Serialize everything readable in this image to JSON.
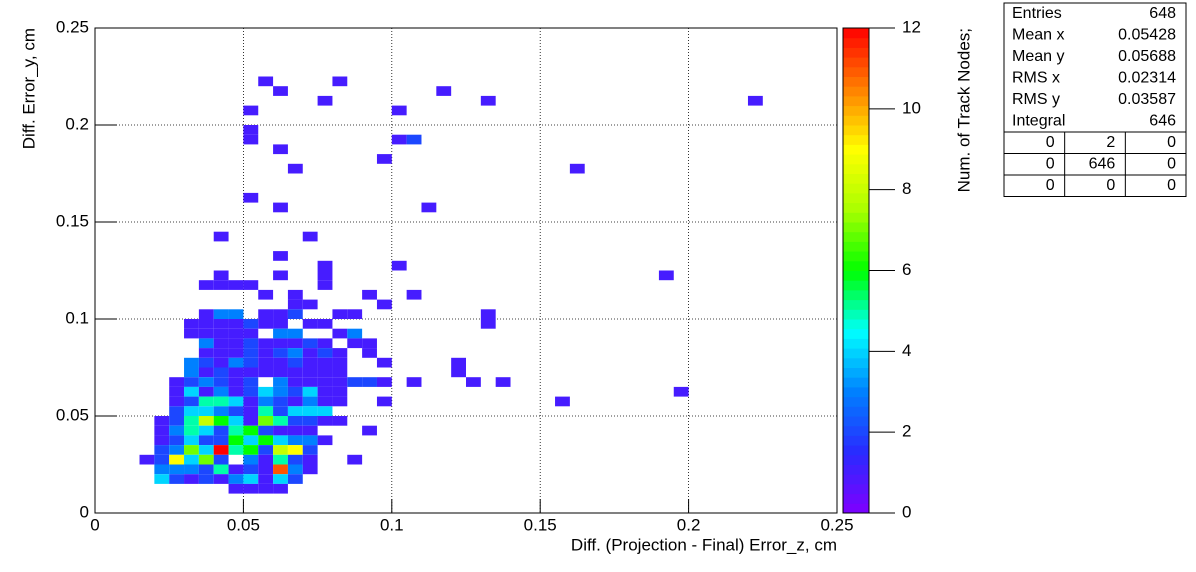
{
  "chart_data": {
    "type": "heatmap",
    "xlabel": "Diff. (Projection - Final) Error_z, cm",
    "ylabel": "Diff. Error_y, cm",
    "zlabel": "Num. of Track Nodes;",
    "xlim": [
      0,
      0.25
    ],
    "ylim": [
      0,
      0.25
    ],
    "zlim": [
      0,
      12
    ],
    "xticks": [
      0,
      0.05,
      0.1,
      0.15,
      0.2,
      0.25
    ],
    "yticks": [
      0,
      0.05,
      0.1,
      0.15,
      0.2,
      0.25
    ],
    "zticks": [
      0,
      2,
      4,
      6,
      8,
      10,
      12
    ],
    "grid": true,
    "palette": [
      "#7f00ff",
      "#2a2aff",
      "#0080ff",
      "#00ffff",
      "#00ff00",
      "#aaff00",
      "#ffff00",
      "#ff8000",
      "#ff0000"
    ],
    "x": [
      0.055,
      0.08,
      0.06,
      0.115,
      0.075,
      0.13,
      0.22,
      0.05,
      0.1,
      0.05,
      0.05,
      0.1,
      0.105,
      0.06,
      0.095,
      0.065,
      0.16,
      0.05,
      0.06,
      0.11,
      0.04,
      0.07,
      0.06,
      0.075,
      0.1,
      0.04,
      0.06,
      0.075,
      0.19,
      0.035,
      0.04,
      0.045,
      0.05,
      0.075,
      0.055,
      0.065,
      0.09,
      0.105,
      0.065,
      0.07,
      0.095,
      0.035,
      0.04,
      0.045,
      0.055,
      0.06,
      0.065,
      0.08,
      0.085,
      0.13,
      0.03,
      0.035,
      0.04,
      0.045,
      0.05,
      0.055,
      0.06,
      0.07,
      0.075,
      0.13,
      0.03,
      0.035,
      0.04,
      0.045,
      0.05,
      0.06,
      0.065,
      0.08,
      0.085,
      0.035,
      0.04,
      0.045,
      0.05,
      0.055,
      0.06,
      0.065,
      0.07,
      0.075,
      0.085,
      0.09,
      0.035,
      0.04,
      0.045,
      0.05,
      0.055,
      0.06,
      0.065,
      0.07,
      0.075,
      0.08,
      0.09,
      0.03,
      0.035,
      0.04,
      0.045,
      0.05,
      0.055,
      0.06,
      0.065,
      0.07,
      0.075,
      0.08,
      0.095,
      0.12,
      0.03,
      0.035,
      0.04,
      0.045,
      0.05,
      0.055,
      0.06,
      0.065,
      0.07,
      0.075,
      0.08,
      0.12,
      0.025,
      0.03,
      0.035,
      0.04,
      0.045,
      0.05,
      0.06,
      0.065,
      0.07,
      0.075,
      0.08,
      0.085,
      0.09,
      0.095,
      0.105,
      0.125,
      0.135,
      0.025,
      0.03,
      0.035,
      0.04,
      0.045,
      0.05,
      0.055,
      0.06,
      0.065,
      0.07,
      0.075,
      0.08,
      0.195,
      0.025,
      0.03,
      0.035,
      0.04,
      0.045,
      0.05,
      0.055,
      0.06,
      0.065,
      0.07,
      0.075,
      0.08,
      0.095,
      0.155,
      0.025,
      0.03,
      0.035,
      0.04,
      0.045,
      0.05,
      0.055,
      0.06,
      0.065,
      0.07,
      0.075,
      0.02,
      0.025,
      0.03,
      0.035,
      0.04,
      0.045,
      0.05,
      0.055,
      0.06,
      0.065,
      0.07,
      0.075,
      0.08,
      0.02,
      0.025,
      0.03,
      0.035,
      0.04,
      0.045,
      0.05,
      0.055,
      0.06,
      0.065,
      0.07,
      0.09,
      0.02,
      0.025,
      0.03,
      0.035,
      0.04,
      0.045,
      0.05,
      0.055,
      0.06,
      0.065,
      0.07,
      0.075,
      0.02,
      0.025,
      0.03,
      0.035,
      0.04,
      0.045,
      0.05,
      0.055,
      0.06,
      0.065,
      0.07,
      0.015,
      0.02,
      0.025,
      0.03,
      0.035,
      0.04,
      0.05,
      0.055,
      0.06,
      0.065,
      0.07,
      0.085,
      0.02,
      0.025,
      0.03,
      0.035,
      0.04,
      0.045,
      0.05,
      0.055,
      0.06,
      0.065,
      0.07,
      0.02,
      0.025,
      0.03,
      0.035,
      0.04,
      0.045,
      0.05,
      0.055,
      0.06,
      0.065,
      0.045,
      0.05,
      0.055,
      0.06
    ],
    "y": [
      0.22,
      0.22,
      0.215,
      0.215,
      0.21,
      0.21,
      0.21,
      0.205,
      0.205,
      0.195,
      0.19,
      0.19,
      0.19,
      0.185,
      0.18,
      0.175,
      0.175,
      0.16,
      0.155,
      0.155,
      0.14,
      0.14,
      0.13,
      0.125,
      0.125,
      0.12,
      0.12,
      0.12,
      0.12,
      0.115,
      0.115,
      0.115,
      0.115,
      0.115,
      0.11,
      0.11,
      0.11,
      0.11,
      0.105,
      0.105,
      0.105,
      0.1,
      0.1,
      0.1,
      0.1,
      0.1,
      0.1,
      0.1,
      0.1,
      0.1,
      0.095,
      0.095,
      0.095,
      0.095,
      0.095,
      0.095,
      0.095,
      0.095,
      0.095,
      0.095,
      0.09,
      0.09,
      0.09,
      0.09,
      0.09,
      0.09,
      0.09,
      0.09,
      0.09,
      0.085,
      0.085,
      0.085,
      0.085,
      0.085,
      0.085,
      0.085,
      0.085,
      0.085,
      0.085,
      0.085,
      0.08,
      0.08,
      0.08,
      0.08,
      0.08,
      0.08,
      0.08,
      0.08,
      0.08,
      0.08,
      0.08,
      0.075,
      0.075,
      0.075,
      0.075,
      0.075,
      0.075,
      0.075,
      0.075,
      0.075,
      0.075,
      0.075,
      0.075,
      0.075,
      0.07,
      0.07,
      0.07,
      0.07,
      0.07,
      0.07,
      0.07,
      0.07,
      0.07,
      0.07,
      0.07,
      0.07,
      0.065,
      0.065,
      0.065,
      0.065,
      0.065,
      0.065,
      0.065,
      0.065,
      0.065,
      0.065,
      0.065,
      0.065,
      0.065,
      0.065,
      0.065,
      0.065,
      0.065,
      0.06,
      0.06,
      0.06,
      0.06,
      0.06,
      0.06,
      0.06,
      0.06,
      0.06,
      0.06,
      0.06,
      0.06,
      0.06,
      0.055,
      0.055,
      0.055,
      0.055,
      0.055,
      0.055,
      0.055,
      0.055,
      0.055,
      0.055,
      0.055,
      0.055,
      0.055,
      0.055,
      0.05,
      0.05,
      0.05,
      0.05,
      0.05,
      0.05,
      0.05,
      0.05,
      0.05,
      0.05,
      0.05,
      0.045,
      0.045,
      0.045,
      0.045,
      0.045,
      0.045,
      0.045,
      0.045,
      0.045,
      0.045,
      0.045,
      0.045,
      0.045,
      0.04,
      0.04,
      0.04,
      0.04,
      0.04,
      0.04,
      0.04,
      0.04,
      0.04,
      0.04,
      0.04,
      0.04,
      0.035,
      0.035,
      0.035,
      0.035,
      0.035,
      0.035,
      0.035,
      0.035,
      0.035,
      0.035,
      0.035,
      0.035,
      0.03,
      0.03,
      0.03,
      0.03,
      0.03,
      0.03,
      0.03,
      0.03,
      0.03,
      0.03,
      0.03,
      0.025,
      0.025,
      0.025,
      0.025,
      0.025,
      0.025,
      0.025,
      0.025,
      0.025,
      0.025,
      0.025,
      0.025,
      0.02,
      0.02,
      0.02,
      0.02,
      0.02,
      0.02,
      0.02,
      0.02,
      0.02,
      0.02,
      0.02,
      0.015,
      0.015,
      0.015,
      0.015,
      0.015,
      0.015,
      0.015,
      0.015,
      0.015,
      0.015,
      0.01,
      0.01,
      0.01,
      0.01
    ],
    "values": [
      1,
      1,
      1,
      1,
      1,
      1,
      1,
      1,
      1,
      1,
      1,
      1,
      2,
      1,
      1,
      1,
      1,
      1,
      1,
      1,
      1,
      1,
      1,
      1,
      1,
      1,
      1,
      1,
      1,
      1,
      1,
      1,
      1,
      1,
      1,
      1,
      1,
      1,
      1,
      1,
      1,
      1,
      3,
      3,
      1,
      1,
      2,
      1,
      1,
      1,
      1,
      1,
      1,
      1,
      2,
      1,
      1,
      1,
      1,
      1,
      1,
      1,
      1,
      1,
      1,
      3,
      3,
      1,
      3,
      3,
      1,
      1,
      2,
      1,
      1,
      1,
      2,
      1,
      1,
      1,
      1,
      1,
      1,
      2,
      1,
      2,
      3,
      1,
      2,
      1,
      1,
      3,
      2,
      1,
      3,
      2,
      1,
      1,
      2,
      1,
      1,
      1,
      1,
      1,
      3,
      1,
      2,
      1,
      1,
      1,
      1,
      1,
      1,
      1,
      1,
      1,
      1,
      2,
      3,
      2,
      1,
      2,
      3,
      1,
      1,
      1,
      1,
      2,
      2,
      1,
      1,
      1,
      1,
      1,
      4,
      1,
      3,
      1,
      2,
      4,
      3,
      2,
      4,
      1,
      1,
      1,
      1,
      2,
      5,
      5,
      4,
      1,
      3,
      2,
      1,
      3,
      1,
      1,
      1,
      1,
      2,
      4,
      4,
      3,
      2,
      1,
      5,
      2,
      4,
      4,
      4,
      1,
      2,
      5,
      8,
      6,
      4,
      1,
      7,
      5,
      2,
      2,
      1,
      1,
      1,
      3,
      5,
      4,
      2,
      5,
      6,
      2,
      1,
      1,
      1,
      1,
      1,
      2,
      4,
      2,
      2,
      6,
      4,
      6,
      4,
      3,
      3,
      1,
      2,
      3,
      7,
      4,
      12,
      5,
      6,
      2,
      8,
      9,
      2,
      1,
      2,
      9,
      4,
      7,
      2,
      3,
      1,
      5,
      2,
      1,
      1,
      3,
      3,
      3,
      2,
      5,
      1,
      2,
      1,
      11,
      3,
      1,
      4,
      2,
      1,
      2,
      1,
      3,
      4,
      1,
      4,
      2,
      1,
      1,
      1,
      1
    ],
    "stats": {
      "rows": [
        {
          "label": "Entries",
          "value": 648
        },
        {
          "label": "Mean x",
          "value": 0.05428
        },
        {
          "label": "Mean y",
          "value": 0.05688
        },
        {
          "label": "RMS x",
          "value": 0.02314
        },
        {
          "label": "RMS y",
          "value": 0.03587
        },
        {
          "label": "Integral",
          "value": 646
        }
      ],
      "grid": [
        [
          0,
          2,
          0
        ],
        [
          0,
          646,
          0
        ],
        [
          0,
          0,
          0
        ]
      ]
    }
  }
}
